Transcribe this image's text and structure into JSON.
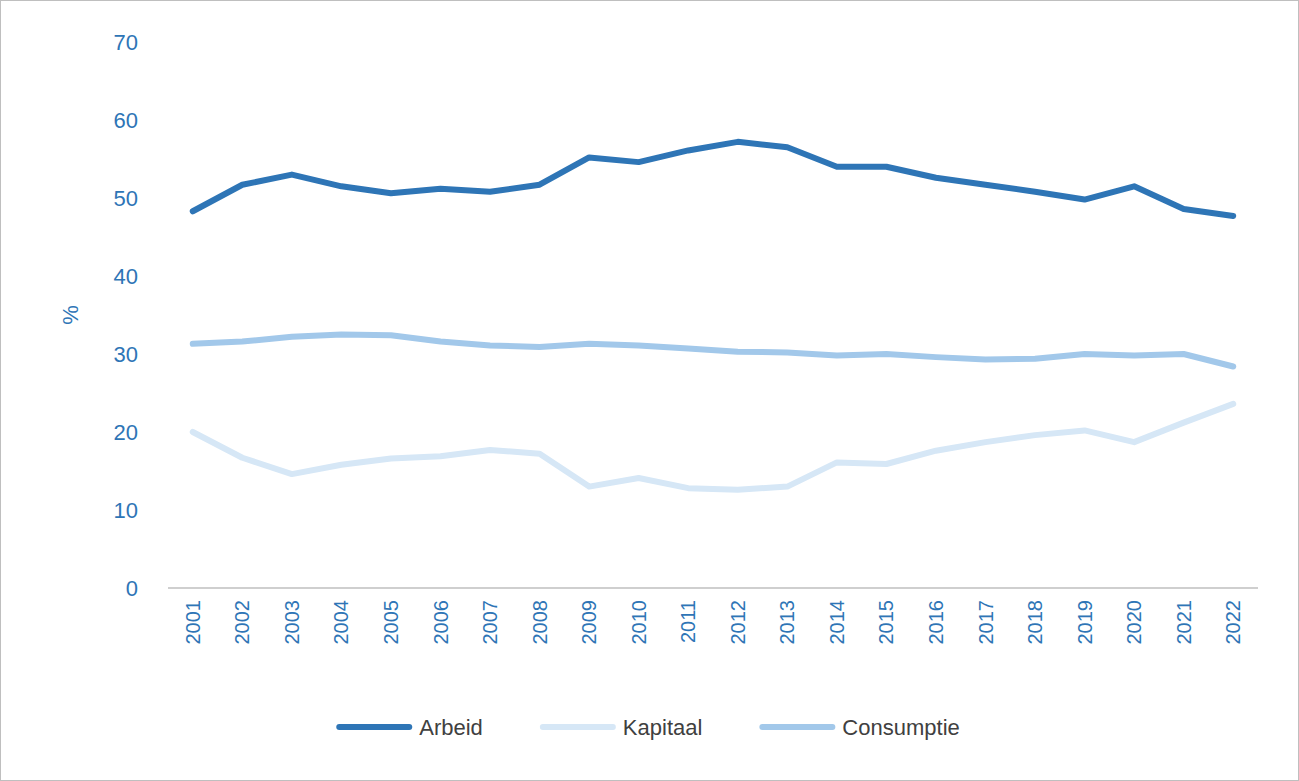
{
  "chart_data": {
    "type": "line",
    "y_label": "%",
    "categories": [
      "2001",
      "2002",
      "2003",
      "2004",
      "2005",
      "2006",
      "2007",
      "2008",
      "2009",
      "2010",
      "2011",
      "2012",
      "2013",
      "2014",
      "2015",
      "2016",
      "2017",
      "2018",
      "2019",
      "2020",
      "2021",
      "2022"
    ],
    "series": [
      {
        "name": "Arbeid",
        "color": "#2e75b6",
        "values": [
          48.3,
          51.7,
          53.0,
          51.5,
          50.6,
          51.2,
          50.8,
          51.7,
          55.2,
          54.6,
          56.1,
          57.2,
          56.5,
          54.0,
          54.0,
          52.6,
          51.7,
          50.8,
          49.8,
          51.5,
          48.6,
          47.7
        ]
      },
      {
        "name": "Kapitaal",
        "color": "#d6e7f6",
        "values": [
          20.0,
          16.7,
          14.6,
          15.8,
          16.6,
          16.9,
          17.7,
          17.2,
          13.0,
          14.1,
          12.8,
          12.6,
          13.0,
          16.1,
          15.9,
          17.6,
          18.7,
          19.6,
          20.2,
          18.7,
          21.2,
          23.6
        ]
      },
      {
        "name": "Consumptie",
        "color": "#a2c8ea",
        "values": [
          31.3,
          31.6,
          32.2,
          32.5,
          32.4,
          31.6,
          31.1,
          30.9,
          31.3,
          31.1,
          30.7,
          30.3,
          30.2,
          29.8,
          30.0,
          29.6,
          29.3,
          29.4,
          30.0,
          29.8,
          30.0,
          28.4
        ]
      }
    ],
    "ylim": [
      0,
      70
    ],
    "yticks": [
      0,
      10,
      20,
      30,
      40,
      50,
      60,
      70
    ],
    "grid": false,
    "legend": "bottom"
  }
}
